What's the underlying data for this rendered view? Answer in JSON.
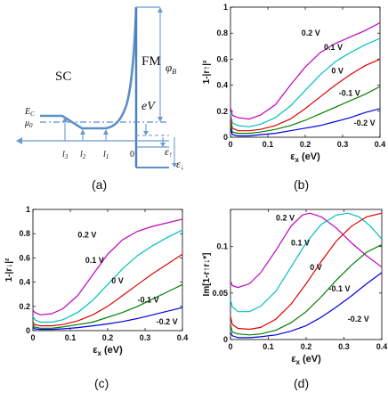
{
  "panels": {
    "a": {
      "caption": "(a)",
      "sc_label": "SC",
      "fm_label": "FM",
      "ec_label": "E",
      "ec_sub": "C",
      "mu_label": "μ",
      "mu_sub": "0",
      "phi_label": "φ",
      "phi_sub": "B",
      "ev_label": "eV",
      "eps_up": "ε",
      "eps_up_sub": "↑",
      "eps_dn": "ε",
      "eps_dn_sub": "↓",
      "l3": "l",
      "l3_sub": "3",
      "l2": "l",
      "l2_sub": "2",
      "l1": "l",
      "l1_sub": "1",
      "zero": "0"
    },
    "b": {
      "caption": "(b)"
    },
    "c": {
      "caption": "(c)"
    },
    "d": {
      "caption": "(d)"
    }
  },
  "chart_data": [
    {
      "panel": "b",
      "type": "line",
      "xlabel": "ε",
      "xlabel_sub": "x",
      "xlabel_unit": " (eV)",
      "ylabel": "1-|r↑|²",
      "xlim": [
        0,
        0.4
      ],
      "ylim": [
        0,
        1
      ],
      "xticks": [
        "0",
        "0.1",
        "0.2",
        "0.3",
        "0.4"
      ],
      "yticks": [
        "0",
        "0.2",
        "0.4",
        "0.6",
        "0.8",
        "1"
      ],
      "series": [
        {
          "name": "0.2 V",
          "color": "#c000c0",
          "points": [
            [
              0,
              0.23
            ],
            [
              0.005,
              0.17
            ],
            [
              0.02,
              0.15
            ],
            [
              0.05,
              0.14
            ],
            [
              0.08,
              0.17
            ],
            [
              0.12,
              0.25
            ],
            [
              0.16,
              0.4
            ],
            [
              0.2,
              0.54
            ],
            [
              0.24,
              0.65
            ],
            [
              0.28,
              0.72
            ],
            [
              0.32,
              0.77
            ],
            [
              0.36,
              0.82
            ],
            [
              0.4,
              0.88
            ]
          ]
        },
        {
          "name": "0.1 V",
          "color": "#00c0c0",
          "points": [
            [
              0,
              0.19
            ],
            [
              0.005,
              0.11
            ],
            [
              0.02,
              0.09
            ],
            [
              0.05,
              0.08
            ],
            [
              0.08,
              0.1
            ],
            [
              0.12,
              0.15
            ],
            [
              0.16,
              0.24
            ],
            [
              0.2,
              0.36
            ],
            [
              0.24,
              0.48
            ],
            [
              0.28,
              0.58
            ],
            [
              0.32,
              0.65
            ],
            [
              0.36,
              0.71
            ],
            [
              0.4,
              0.76
            ]
          ]
        },
        {
          "name": "0 V",
          "color": "#e00000",
          "points": [
            [
              0,
              0.15
            ],
            [
              0.005,
              0.07
            ],
            [
              0.02,
              0.05
            ],
            [
              0.05,
              0.05
            ],
            [
              0.08,
              0.06
            ],
            [
              0.12,
              0.09
            ],
            [
              0.16,
              0.14
            ],
            [
              0.2,
              0.22
            ],
            [
              0.24,
              0.31
            ],
            [
              0.28,
              0.4
            ],
            [
              0.32,
              0.48
            ],
            [
              0.36,
              0.55
            ],
            [
              0.4,
              0.6
            ]
          ]
        },
        {
          "name": "-0.1 V",
          "color": "#008000",
          "points": [
            [
              0,
              0.11
            ],
            [
              0.005,
              0.04
            ],
            [
              0.02,
              0.03
            ],
            [
              0.05,
              0.03
            ],
            [
              0.08,
              0.04
            ],
            [
              0.12,
              0.06
            ],
            [
              0.16,
              0.09
            ],
            [
              0.2,
              0.13
            ],
            [
              0.24,
              0.18
            ],
            [
              0.28,
              0.23
            ],
            [
              0.32,
              0.28
            ],
            [
              0.36,
              0.33
            ],
            [
              0.4,
              0.39
            ]
          ]
        },
        {
          "name": "-0.2 V",
          "color": "#0000e0",
          "points": [
            [
              0,
              0.07
            ],
            [
              0.005,
              0.02
            ],
            [
              0.02,
              0.01
            ],
            [
              0.05,
              0.01
            ],
            [
              0.08,
              0.02
            ],
            [
              0.12,
              0.03
            ],
            [
              0.16,
              0.05
            ],
            [
              0.2,
              0.07
            ],
            [
              0.24,
              0.09
            ],
            [
              0.28,
              0.12
            ],
            [
              0.32,
              0.15
            ],
            [
              0.36,
              0.19
            ],
            [
              0.4,
              0.22
            ]
          ]
        }
      ],
      "labels": [
        {
          "text": "0.2 V",
          "x": 0.19,
          "y": 0.78
        },
        {
          "text": "0.1 V",
          "x": 0.25,
          "y": 0.67
        },
        {
          "text": "0 V",
          "x": 0.27,
          "y": 0.49
        },
        {
          "text": "-0.1 V",
          "x": 0.29,
          "y": 0.32
        },
        {
          "text": "-0.2 V",
          "x": 0.33,
          "y": 0.09
        }
      ]
    },
    {
      "panel": "c",
      "type": "line",
      "xlabel": "ε",
      "xlabel_sub": "x",
      "xlabel_unit": " (eV)",
      "ylabel": "1-|r↓|²",
      "xlim": [
        0,
        0.4
      ],
      "ylim": [
        0,
        1
      ],
      "xticks": [
        "0",
        "0.1",
        "0.2",
        "0.3",
        "0.4"
      ],
      "yticks": [
        "0",
        "0.2",
        "0.4",
        "0.6",
        "0.8",
        "1"
      ],
      "series": [
        {
          "name": "0.2 V",
          "color": "#c000c0",
          "points": [
            [
              0,
              0.17
            ],
            [
              0.005,
              0.15
            ],
            [
              0.02,
              0.13
            ],
            [
              0.05,
              0.14
            ],
            [
              0.08,
              0.18
            ],
            [
              0.12,
              0.29
            ],
            [
              0.16,
              0.46
            ],
            [
              0.2,
              0.63
            ],
            [
              0.24,
              0.75
            ],
            [
              0.28,
              0.82
            ],
            [
              0.32,
              0.86
            ],
            [
              0.36,
              0.89
            ],
            [
              0.4,
              0.92
            ]
          ]
        },
        {
          "name": "0.1 V",
          "color": "#00c0c0",
          "points": [
            [
              0,
              0.12
            ],
            [
              0.005,
              0.09
            ],
            [
              0.02,
              0.07
            ],
            [
              0.05,
              0.07
            ],
            [
              0.08,
              0.09
            ],
            [
              0.12,
              0.15
            ],
            [
              0.16,
              0.25
            ],
            [
              0.2,
              0.38
            ],
            [
              0.24,
              0.51
            ],
            [
              0.28,
              0.62
            ],
            [
              0.32,
              0.7
            ],
            [
              0.36,
              0.77
            ],
            [
              0.4,
              0.83
            ]
          ]
        },
        {
          "name": "0 V",
          "color": "#e00000",
          "points": [
            [
              0,
              0.07
            ],
            [
              0.005,
              0.05
            ],
            [
              0.02,
              0.04
            ],
            [
              0.05,
              0.04
            ],
            [
              0.08,
              0.05
            ],
            [
              0.12,
              0.08
            ],
            [
              0.16,
              0.13
            ],
            [
              0.2,
              0.2
            ],
            [
              0.24,
              0.29
            ],
            [
              0.28,
              0.38
            ],
            [
              0.32,
              0.47
            ],
            [
              0.36,
              0.55
            ],
            [
              0.4,
              0.63
            ]
          ]
        },
        {
          "name": "-0.1 V",
          "color": "#008000",
          "points": [
            [
              0,
              0.05
            ],
            [
              0.005,
              0.03
            ],
            [
              0.02,
              0.02
            ],
            [
              0.05,
              0.02
            ],
            [
              0.08,
              0.03
            ],
            [
              0.12,
              0.05
            ],
            [
              0.16,
              0.07
            ],
            [
              0.2,
              0.11
            ],
            [
              0.24,
              0.15
            ],
            [
              0.28,
              0.2
            ],
            [
              0.32,
              0.26
            ],
            [
              0.36,
              0.32
            ],
            [
              0.4,
              0.38
            ]
          ]
        },
        {
          "name": "-0.2 V",
          "color": "#0000e0",
          "points": [
            [
              0,
              0.03
            ],
            [
              0.005,
              0.015
            ],
            [
              0.02,
              0.01
            ],
            [
              0.05,
              0.01
            ],
            [
              0.08,
              0.015
            ],
            [
              0.12,
              0.025
            ],
            [
              0.16,
              0.04
            ],
            [
              0.2,
              0.055
            ],
            [
              0.24,
              0.075
            ],
            [
              0.28,
              0.1
            ],
            [
              0.32,
              0.13
            ],
            [
              0.36,
              0.16
            ],
            [
              0.4,
              0.19
            ]
          ]
        }
      ],
      "labels": [
        {
          "text": "0.2 V",
          "x": 0.12,
          "y": 0.77
        },
        {
          "text": "0.1 V",
          "x": 0.14,
          "y": 0.56
        },
        {
          "text": "0 V",
          "x": 0.21,
          "y": 0.39
        },
        {
          "text": "-0.1 V",
          "x": 0.28,
          "y": 0.23
        },
        {
          "text": "-0.2 V",
          "x": 0.33,
          "y": 0.05
        }
      ]
    },
    {
      "panel": "d",
      "type": "line",
      "xlabel": "ε",
      "xlabel_sub": "x",
      "xlabel_unit": " (eV)",
      "ylabel": "Im[1-r↑r↓*]",
      "xlim": [
        0,
        0.4
      ],
      "ylim": [
        0,
        0.14
      ],
      "xticks": [
        "0",
        "0.1",
        "0.2",
        "0.3",
        "0.4"
      ],
      "yticks": [
        "0",
        "0.05",
        "0.1"
      ],
      "series": [
        {
          "name": "0.2 V",
          "color": "#c000c0",
          "points": [
            [
              0,
              0.063
            ],
            [
              0.005,
              0.058
            ],
            [
              0.02,
              0.056
            ],
            [
              0.05,
              0.06
            ],
            [
              0.08,
              0.072
            ],
            [
              0.12,
              0.096
            ],
            [
              0.16,
              0.122
            ],
            [
              0.19,
              0.134
            ],
            [
              0.21,
              0.136
            ],
            [
              0.24,
              0.132
            ],
            [
              0.28,
              0.12
            ],
            [
              0.32,
              0.104
            ],
            [
              0.36,
              0.09
            ],
            [
              0.4,
              0.078
            ]
          ]
        },
        {
          "name": "0.1 V",
          "color": "#00c0c0",
          "points": [
            [
              0,
              0.043
            ],
            [
              0.005,
              0.035
            ],
            [
              0.02,
              0.03
            ],
            [
              0.05,
              0.03
            ],
            [
              0.08,
              0.036
            ],
            [
              0.12,
              0.052
            ],
            [
              0.16,
              0.078
            ],
            [
              0.2,
              0.104
            ],
            [
              0.24,
              0.124
            ],
            [
              0.28,
              0.134
            ],
            [
              0.31,
              0.136
            ],
            [
              0.34,
              0.132
            ],
            [
              0.37,
              0.122
            ],
            [
              0.4,
              0.108
            ]
          ]
        },
        {
          "name": "0 V",
          "color": "#e00000",
          "points": [
            [
              0,
              0.025
            ],
            [
              0.005,
              0.016
            ],
            [
              0.02,
              0.012
            ],
            [
              0.05,
              0.011
            ],
            [
              0.08,
              0.013
            ],
            [
              0.12,
              0.022
            ],
            [
              0.16,
              0.038
            ],
            [
              0.2,
              0.06
            ],
            [
              0.24,
              0.084
            ],
            [
              0.28,
              0.106
            ],
            [
              0.32,
              0.122
            ],
            [
              0.36,
              0.132
            ],
            [
              0.4,
              0.136
            ]
          ]
        },
        {
          "name": "-0.1 V",
          "color": "#008000",
          "points": [
            [
              0,
              0.016
            ],
            [
              0.005,
              0.008
            ],
            [
              0.02,
              0.006
            ],
            [
              0.05,
              0.005
            ],
            [
              0.08,
              0.006
            ],
            [
              0.12,
              0.01
            ],
            [
              0.16,
              0.018
            ],
            [
              0.2,
              0.03
            ],
            [
              0.24,
              0.046
            ],
            [
              0.28,
              0.064
            ],
            [
              0.32,
              0.08
            ],
            [
              0.36,
              0.094
            ],
            [
              0.4,
              0.102
            ]
          ]
        },
        {
          "name": "-0.2 V",
          "color": "#0000e0",
          "points": [
            [
              0,
              0.008
            ],
            [
              0.005,
              0.004
            ],
            [
              0.02,
              0.002
            ],
            [
              0.05,
              0.002
            ],
            [
              0.08,
              0.003
            ],
            [
              0.12,
              0.005
            ],
            [
              0.16,
              0.009
            ],
            [
              0.2,
              0.015
            ],
            [
              0.24,
              0.024
            ],
            [
              0.28,
              0.035
            ],
            [
              0.32,
              0.047
            ],
            [
              0.36,
              0.06
            ],
            [
              0.4,
              0.072
            ]
          ]
        }
      ],
      "labels": [
        {
          "text": "0.2 V",
          "x": 0.12,
          "y": 0.128
        },
        {
          "text": "0.1 V",
          "x": 0.16,
          "y": 0.101
        },
        {
          "text": "0 V",
          "x": 0.21,
          "y": 0.075
        },
        {
          "text": "-0.1 V",
          "x": 0.26,
          "y": 0.052
        },
        {
          "text": "-0.2 V",
          "x": 0.31,
          "y": 0.019
        }
      ]
    }
  ]
}
